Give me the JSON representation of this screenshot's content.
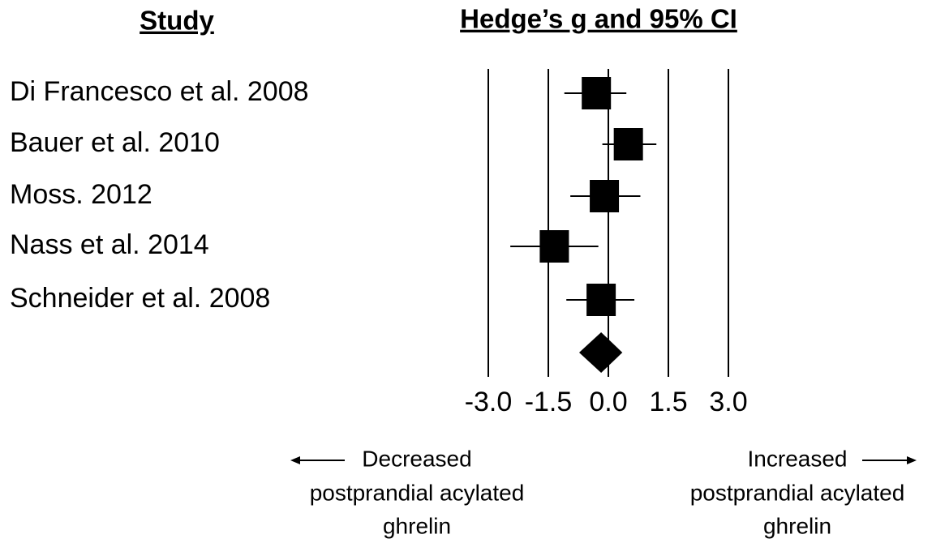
{
  "chart_data": {
    "type": "forest",
    "title": "Hedge’s g and 95% CI",
    "category_header": "Study",
    "categories": [
      "Di Francesco et al. 2008",
      "Bauer et al. 2010",
      "Moss. 2012",
      "Nass et al. 2014",
      "Schneider et al. 2008"
    ],
    "values": [
      -0.3,
      0.5,
      -0.1,
      -1.35,
      -0.18
    ],
    "ci_lower": [
      -1.1,
      -0.15,
      -0.95,
      -2.45,
      -1.05
    ],
    "ci_upper": [
      0.45,
      1.2,
      0.8,
      -0.25,
      0.65
    ],
    "summary": {
      "value": -0.18,
      "ci_lower": -0.73,
      "ci_upper": 0.35
    },
    "xlim": [
      -3,
      3
    ],
    "xticks": [
      {
        "value": -3,
        "label": "-3.0"
      },
      {
        "value": -1.5,
        "label": "-1.5"
      },
      {
        "value": 0,
        "label": "0.0"
      },
      {
        "value": 1.5,
        "label": "1.5"
      },
      {
        "value": 3,
        "label": "3.0"
      }
    ],
    "grid": true,
    "color": "#000000",
    "annotations": {
      "left": [
        "Decreased",
        "postprandial acylated",
        "ghrelin"
      ],
      "right": [
        "Increased",
        "postprandial acylated",
        "ghrelin"
      ]
    }
  }
}
